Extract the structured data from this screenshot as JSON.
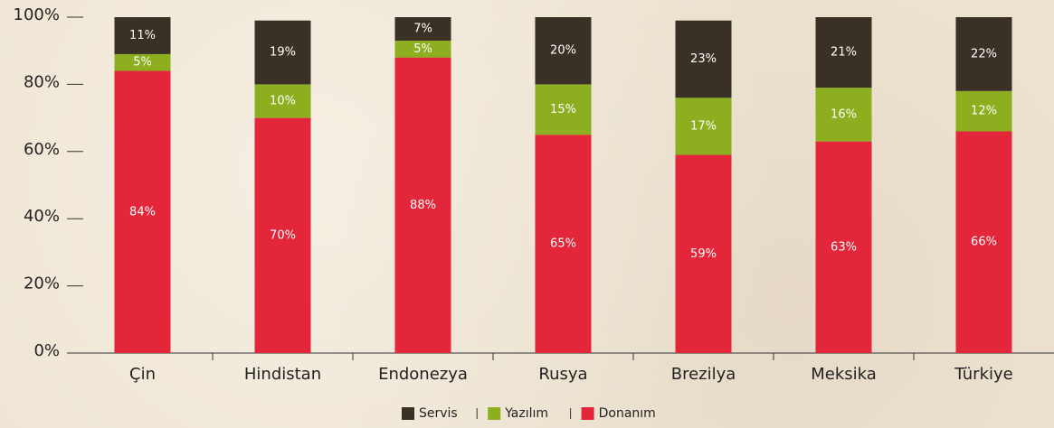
{
  "chart_data": {
    "type": "stacked_bar",
    "categories": [
      "Çin",
      "Hindistan",
      "Endonezya",
      "Rusya",
      "Brezilya",
      "Meksika",
      "Türkiye"
    ],
    "series": [
      {
        "name": "Donanım",
        "color": "#e3263a",
        "values": [
          84,
          70,
          88,
          65,
          59,
          63,
          66
        ],
        "value_labels": [
          "84%",
          "70%",
          "88%",
          "65%",
          "59%",
          "63%",
          "66%"
        ]
      },
      {
        "name": "Yazılım",
        "color": "#8cae1f",
        "values": [
          5,
          10,
          5,
          15,
          17,
          16,
          12
        ],
        "value_labels": [
          "5%",
          "10%",
          "5%",
          "15%",
          "17%",
          "16%",
          "12%"
        ]
      },
      {
        "name": "Servis",
        "color": "#3a3126",
        "values": [
          11,
          19,
          7,
          20,
          23,
          21,
          22
        ],
        "value_labels": [
          "11%",
          "19%",
          "7%",
          "20%",
          "23%",
          "21%",
          "22%"
        ]
      }
    ],
    "ylim": [
      0,
      100
    ],
    "yticks": [
      {
        "value": 0,
        "label": "0%"
      },
      {
        "value": 20,
        "label": "20%"
      },
      {
        "value": 40,
        "label": "40%"
      },
      {
        "value": 60,
        "label": "60%"
      },
      {
        "value": 80,
        "label": "80%"
      },
      {
        "value": 100,
        "label": "100%"
      }
    ],
    "legend": "bottom"
  }
}
